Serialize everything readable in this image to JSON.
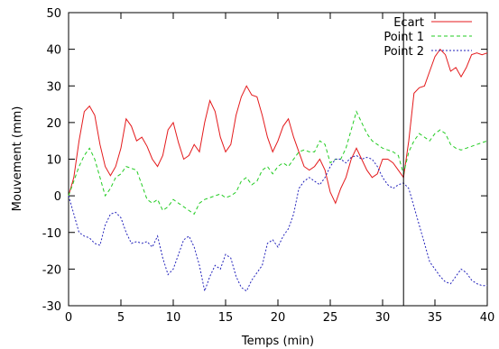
{
  "chart_data": {
    "type": "line",
    "title": "",
    "xlabel": "Temps (min)",
    "ylabel": "Mouvement (mm)",
    "xlim": [
      0,
      40
    ],
    "ylim": [
      -30,
      50
    ],
    "xticks": [
      0,
      5,
      10,
      15,
      20,
      25,
      30,
      35,
      40
    ],
    "yticks": [
      -30,
      -20,
      -10,
      0,
      10,
      20,
      30,
      40,
      50
    ],
    "grid": false,
    "legend_position": "top-right",
    "vertical_marker_x": 32,
    "series": [
      {
        "name": "Ecart",
        "color": "#e41a1c",
        "dash": "solid",
        "points": [
          [
            0,
            0
          ],
          [
            0.5,
            5
          ],
          [
            1,
            15
          ],
          [
            1.5,
            23
          ],
          [
            2,
            24.5
          ],
          [
            2.5,
            22
          ],
          [
            3,
            14
          ],
          [
            3.5,
            8
          ],
          [
            4,
            5.5
          ],
          [
            4.5,
            8
          ],
          [
            5,
            13
          ],
          [
            5.5,
            21
          ],
          [
            6,
            19
          ],
          [
            6.5,
            15
          ],
          [
            7,
            16
          ],
          [
            7.5,
            13.5
          ],
          [
            8,
            10
          ],
          [
            8.5,
            8
          ],
          [
            9,
            11
          ],
          [
            9.5,
            18
          ],
          [
            10,
            20
          ],
          [
            10.5,
            14.5
          ],
          [
            11,
            10
          ],
          [
            11.5,
            11
          ],
          [
            12,
            14
          ],
          [
            12.5,
            12
          ],
          [
            13,
            20
          ],
          [
            13.5,
            26
          ],
          [
            14,
            23
          ],
          [
            14.5,
            16
          ],
          [
            15,
            12
          ],
          [
            15.5,
            14
          ],
          [
            16,
            22
          ],
          [
            16.5,
            27
          ],
          [
            17,
            30
          ],
          [
            17.5,
            27.5
          ],
          [
            18,
            27
          ],
          [
            18.5,
            22
          ],
          [
            19,
            16
          ],
          [
            19.5,
            12
          ],
          [
            20,
            15
          ],
          [
            20.5,
            19
          ],
          [
            21,
            21
          ],
          [
            21.5,
            16
          ],
          [
            22,
            12
          ],
          [
            22.5,
            8
          ],
          [
            23,
            7
          ],
          [
            23.5,
            8
          ],
          [
            24,
            10
          ],
          [
            24.5,
            7
          ],
          [
            25,
            1
          ],
          [
            25.5,
            -2
          ],
          [
            26,
            2
          ],
          [
            26.5,
            5
          ],
          [
            27,
            10
          ],
          [
            27.5,
            13
          ],
          [
            28,
            10
          ],
          [
            28.5,
            7
          ],
          [
            29,
            5
          ],
          [
            29.5,
            6
          ],
          [
            30,
            10
          ],
          [
            30.5,
            10
          ],
          [
            31,
            9
          ],
          [
            31.5,
            7
          ],
          [
            32,
            5
          ],
          [
            32.5,
            15
          ],
          [
            33,
            28
          ],
          [
            33.5,
            29.5
          ],
          [
            34,
            30
          ],
          [
            34.5,
            34
          ],
          [
            35,
            38
          ],
          [
            35.5,
            40
          ],
          [
            36,
            38.5
          ],
          [
            36.5,
            34
          ],
          [
            37,
            35
          ],
          [
            37.5,
            32.5
          ],
          [
            38,
            35
          ],
          [
            38.5,
            38.5
          ],
          [
            39,
            39
          ],
          [
            39.5,
            38.5
          ],
          [
            40,
            39
          ]
        ]
      },
      {
        "name": "Point 1",
        "color": "#22cc22",
        "dash": "4,3",
        "points": [
          [
            0,
            0
          ],
          [
            0.5,
            4
          ],
          [
            1,
            8
          ],
          [
            1.5,
            11
          ],
          [
            2,
            13
          ],
          [
            2.5,
            10
          ],
          [
            3,
            5
          ],
          [
            3.5,
            0
          ],
          [
            4,
            2
          ],
          [
            4.5,
            5
          ],
          [
            5,
            6
          ],
          [
            5.5,
            8
          ],
          [
            6,
            7.5
          ],
          [
            6.5,
            7
          ],
          [
            7,
            3
          ],
          [
            7.5,
            -1
          ],
          [
            8,
            -2
          ],
          [
            8.5,
            -1
          ],
          [
            9,
            -4
          ],
          [
            9.5,
            -3
          ],
          [
            10,
            -1
          ],
          [
            10.5,
            -2
          ],
          [
            11,
            -3
          ],
          [
            11.5,
            -4
          ],
          [
            12,
            -5
          ],
          [
            12.5,
            -2
          ],
          [
            13,
            -1
          ],
          [
            13.5,
            -0.5
          ],
          [
            14,
            0
          ],
          [
            14.5,
            0.5
          ],
          [
            15,
            -0.5
          ],
          [
            15.5,
            0
          ],
          [
            16,
            1
          ],
          [
            16.5,
            4
          ],
          [
            17,
            5
          ],
          [
            17.5,
            3
          ],
          [
            18,
            4
          ],
          [
            18.5,
            7
          ],
          [
            19,
            8
          ],
          [
            19.5,
            6
          ],
          [
            20,
            8
          ],
          [
            20.5,
            9
          ],
          [
            21,
            8
          ],
          [
            21.5,
            10
          ],
          [
            22,
            12
          ],
          [
            22.5,
            12.5
          ],
          [
            23,
            12
          ],
          [
            23.5,
            12
          ],
          [
            24,
            15
          ],
          [
            24.5,
            14
          ],
          [
            25,
            9
          ],
          [
            25.5,
            10
          ],
          [
            26,
            10
          ],
          [
            26.5,
            13
          ],
          [
            27,
            18
          ],
          [
            27.5,
            23
          ],
          [
            28,
            20
          ],
          [
            28.5,
            17
          ],
          [
            29,
            15
          ],
          [
            29.5,
            14
          ],
          [
            30,
            13
          ],
          [
            30.5,
            12.5
          ],
          [
            31,
            12
          ],
          [
            31.5,
            11
          ],
          [
            32,
            6
          ],
          [
            32.5,
            12
          ],
          [
            33,
            15
          ],
          [
            33.5,
            17
          ],
          [
            34,
            16
          ],
          [
            34.5,
            15
          ],
          [
            35,
            17
          ],
          [
            35.5,
            18
          ],
          [
            36,
            17
          ],
          [
            36.5,
            14
          ],
          [
            37,
            13
          ],
          [
            37.5,
            12.5
          ],
          [
            38,
            13
          ],
          [
            38.5,
            13.5
          ],
          [
            39,
            14
          ],
          [
            39.5,
            14.5
          ],
          [
            40,
            15
          ]
        ]
      },
      {
        "name": "Point 2",
        "color": "#2222bb",
        "dash": "2,2",
        "points": [
          [
            0,
            0
          ],
          [
            0.5,
            -5
          ],
          [
            1,
            -10
          ],
          [
            1.5,
            -11
          ],
          [
            2,
            -11.5
          ],
          [
            2.5,
            -13
          ],
          [
            3,
            -13.5
          ],
          [
            3.5,
            -8
          ],
          [
            4,
            -5
          ],
          [
            4.5,
            -4.5
          ],
          [
            5,
            -6
          ],
          [
            5.5,
            -10
          ],
          [
            6,
            -13
          ],
          [
            6.5,
            -12.5
          ],
          [
            7,
            -13
          ],
          [
            7.5,
            -12.5
          ],
          [
            8,
            -14
          ],
          [
            8.5,
            -11
          ],
          [
            9,
            -17
          ],
          [
            9.5,
            -21.5
          ],
          [
            10,
            -20
          ],
          [
            10.5,
            -16
          ],
          [
            11,
            -12
          ],
          [
            11.5,
            -11
          ],
          [
            12,
            -14
          ],
          [
            12.5,
            -19
          ],
          [
            13,
            -26
          ],
          [
            13.5,
            -22
          ],
          [
            14,
            -19
          ],
          [
            14.5,
            -20
          ],
          [
            15,
            -16
          ],
          [
            15.5,
            -17
          ],
          [
            16,
            -22
          ],
          [
            16.5,
            -25
          ],
          [
            17,
            -26
          ],
          [
            17.5,
            -23
          ],
          [
            18,
            -21
          ],
          [
            18.5,
            -19
          ],
          [
            19,
            -13
          ],
          [
            19.5,
            -12
          ],
          [
            20,
            -14
          ],
          [
            20.5,
            -11
          ],
          [
            21,
            -9
          ],
          [
            21.5,
            -5
          ],
          [
            22,
            2
          ],
          [
            22.5,
            4
          ],
          [
            23,
            5
          ],
          [
            23.5,
            4
          ],
          [
            24,
            3
          ],
          [
            24.5,
            5
          ],
          [
            25,
            8
          ],
          [
            25.5,
            10
          ],
          [
            26,
            10
          ],
          [
            26.5,
            9
          ],
          [
            27,
            10.5
          ],
          [
            27.5,
            11
          ],
          [
            28,
            10
          ],
          [
            28.5,
            10.5
          ],
          [
            29,
            10
          ],
          [
            29.5,
            8
          ],
          [
            30,
            5
          ],
          [
            30.5,
            3
          ],
          [
            31,
            2
          ],
          [
            31.5,
            3
          ],
          [
            32,
            3.5
          ],
          [
            32.5,
            2
          ],
          [
            33,
            -3
          ],
          [
            33.5,
            -8
          ],
          [
            34,
            -13
          ],
          [
            34.5,
            -18
          ],
          [
            35,
            -20
          ],
          [
            35.5,
            -22
          ],
          [
            36,
            -23.5
          ],
          [
            36.5,
            -24
          ],
          [
            37,
            -22
          ],
          [
            37.5,
            -20
          ],
          [
            38,
            -21
          ],
          [
            38.5,
            -23
          ],
          [
            39,
            -24
          ],
          [
            39.5,
            -24.5
          ],
          [
            40,
            -24.5
          ]
        ]
      }
    ]
  }
}
